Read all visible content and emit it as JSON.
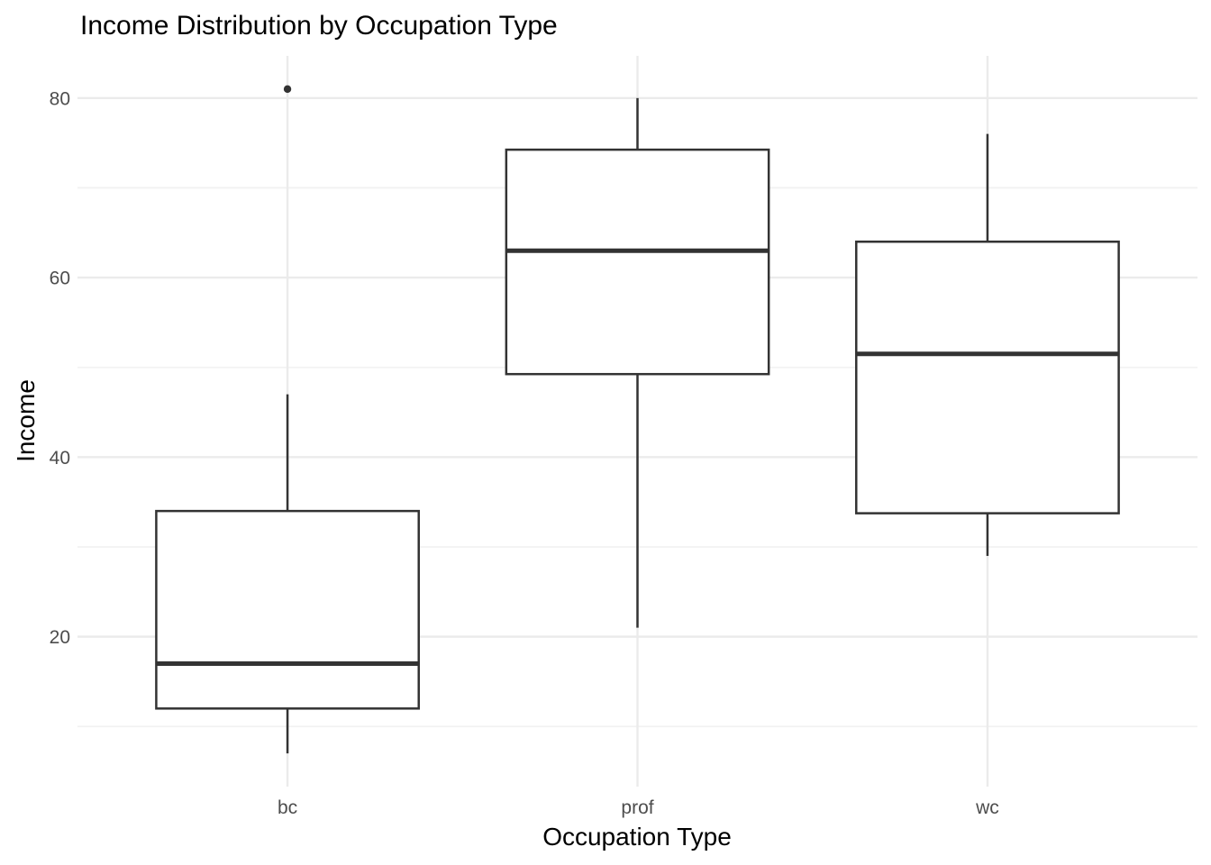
{
  "chart_data": {
    "type": "boxplot",
    "title": "Income Distribution by Occupation Type",
    "xlabel": "Occupation Type",
    "ylabel": "Income",
    "categories": [
      "bc",
      "prof",
      "wc"
    ],
    "series": [
      {
        "category": "bc",
        "whisker_low": 7,
        "q1": 12,
        "median": 17,
        "q3": 34,
        "whisker_high": 47,
        "outliers": [
          81
        ]
      },
      {
        "category": "prof",
        "whisker_low": 21,
        "q1": 49.25,
        "median": 63,
        "q3": 74.25,
        "whisker_high": 80,
        "outliers": []
      },
      {
        "category": "wc",
        "whisker_low": 29,
        "q1": 33.75,
        "median": 51.5,
        "q3": 64,
        "whisker_high": 76,
        "outliers": []
      }
    ],
    "ylim": [
      3.3,
      84.7
    ],
    "y_major_ticks": [
      20,
      40,
      60,
      80
    ],
    "y_minor_gridlines": [
      10,
      30,
      50,
      70
    ],
    "grid": true,
    "legend": false,
    "colors": {
      "background": "#FFFFFF",
      "grid_major": "#EBEBEB",
      "grid_minor": "#F2F2F2",
      "box_stroke": "#333333",
      "box_fill": "#FFFFFF",
      "median_stroke": "#333333",
      "outlier_fill": "#333333",
      "axis_text": "#4D4D4D",
      "title_text": "#000000"
    }
  }
}
